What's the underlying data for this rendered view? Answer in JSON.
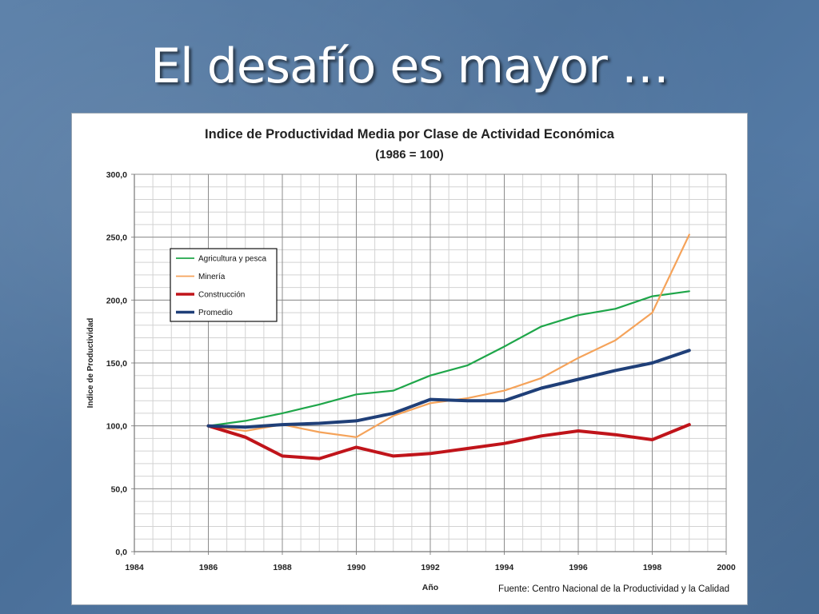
{
  "slide": {
    "title": "El desafío es mayor …"
  },
  "chart_data": {
    "type": "line",
    "title": "Indice de Productividad Media por Clase de Actividad Económica",
    "subtitle": "(1986 = 100)",
    "xlabel": "Año",
    "ylabel": "Indice de Productividad",
    "source": "Fuente: Centro Nacional de la Productividad y la Calidad",
    "xlim": [
      1984,
      2000
    ],
    "ylim": [
      0,
      300
    ],
    "x_ticks": [
      "1984",
      "1986",
      "1988",
      "1990",
      "1992",
      "1994",
      "1996",
      "1998",
      "2000"
    ],
    "y_ticks": [
      "0,0",
      "50,0",
      "100,0",
      "150,0",
      "200,0",
      "250,0",
      "300,0"
    ],
    "grid": true,
    "legend_position": "upper-left",
    "x": [
      1986,
      1987,
      1988,
      1989,
      1990,
      1991,
      1992,
      1993,
      1994,
      1995,
      1996,
      1997,
      1998,
      1999
    ],
    "series": [
      {
        "name": "Agricultura y pesca",
        "color": "#1fa64a",
        "values": [
          100,
          104,
          110,
          117,
          125,
          128,
          140,
          148,
          163,
          179,
          188,
          193,
          203,
          207
        ]
      },
      {
        "name": "Minería",
        "color": "#f5a35a",
        "values": [
          100,
          96,
          101,
          95,
          91,
          108,
          118,
          122,
          128,
          138,
          154,
          168,
          190,
          252
        ]
      },
      {
        "name": "Construcción",
        "color": "#c0141a",
        "values": [
          100,
          91,
          76,
          74,
          83,
          76,
          78,
          82,
          86,
          92,
          96,
          93,
          89,
          101
        ]
      },
      {
        "name": "Promedio",
        "color": "#1f3f78",
        "values": [
          100,
          99,
          101,
          102,
          104,
          110,
          121,
          120,
          120,
          130,
          137,
          144,
          150,
          160
        ]
      }
    ]
  }
}
